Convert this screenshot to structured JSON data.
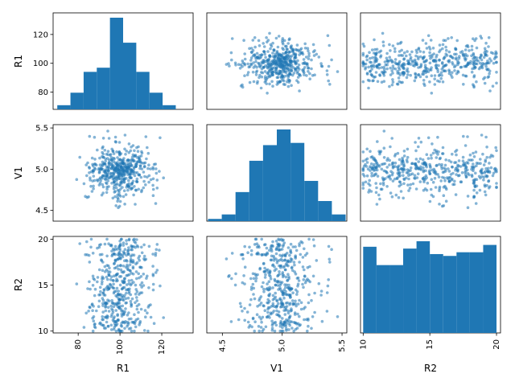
{
  "chart_data": {
    "type": "scatter",
    "variables": [
      "R1",
      "V1",
      "R2"
    ],
    "axis_labels": {
      "x": [
        "R1",
        "V1",
        "R2"
      ],
      "y": [
        "R1",
        "V1",
        "R2"
      ]
    },
    "ranges": {
      "R1": [
        68,
        135
      ],
      "V1": [
        4.37,
        5.54
      ],
      "R2": [
        9.8,
        20.3
      ]
    },
    "ticks": {
      "R1": {
        "x": [
          80,
          100,
          120
        ],
        "y": [
          80,
          100,
          120
        ]
      },
      "V1": {
        "x": [
          4.5,
          5.0,
          5.5
        ],
        "y": [
          4.5,
          5.0,
          5.5
        ]
      },
      "R2": {
        "x": [
          10,
          15,
          20
        ],
        "y": [
          10,
          15,
          20
        ]
      }
    },
    "tick_labels": {
      "R1": {
        "x": [
          "80",
          "100",
          "120"
        ],
        "y": [
          "80",
          "100",
          "120"
        ]
      },
      "V1": {
        "x": [
          "4.5",
          "5.0",
          "5.5"
        ],
        "y": [
          "4.5",
          "5.0",
          "5.5"
        ]
      },
      "R2": {
        "x": [
          "10",
          "15",
          "20"
        ],
        "y": [
          "10",
          "15",
          "20"
        ]
      }
    },
    "diagonal_histograms": {
      "R1": {
        "bin_edges": [
          70,
          76.3,
          82.6,
          88.9,
          95.2,
          101.5,
          107.8,
          114.1,
          120.4,
          126.7,
          133
        ],
        "counts": [
          1,
          4,
          9,
          10,
          22,
          16,
          9,
          4,
          1,
          0
        ]
      },
      "V1": {
        "bin_edges": [
          4.38,
          4.495,
          4.61,
          4.725,
          4.84,
          4.955,
          5.07,
          5.185,
          5.3,
          5.415,
          5.53
        ],
        "counts": [
          1,
          3,
          13,
          27,
          34,
          41,
          35,
          18,
          9,
          3
        ]
      },
      "R2": {
        "bin_edges": [
          10,
          11,
          12,
          13,
          14,
          15,
          16,
          17,
          18,
          19,
          20
        ],
        "counts": [
          47,
          37,
          37,
          46,
          50,
          43,
          42,
          44,
          44,
          48
        ]
      }
    },
    "sample_points": {
      "R1": [
        95,
        104,
        98,
        110,
        89,
        101,
        107,
        93,
        99,
        103,
        97,
        114,
        86,
        100,
        106,
        92,
        102,
        96,
        108,
        91,
        105,
        99,
        111,
        94,
        100,
        88,
        104,
        98,
        116,
        97,
        102,
        90,
        106,
        101,
        95,
        109,
        99,
        93,
        103,
        100,
        84,
        107,
        98,
        112,
        96,
        101,
        104,
        92,
        99,
        105,
        97,
        103,
        90,
        100,
        118,
        95,
        102,
        108,
        98,
        94,
        106,
        101,
        87,
        99,
        103,
        96,
        110,
        100,
        93,
        105,
        98,
        102,
        91,
        107,
        99,
        104,
        97,
        113,
        95,
        100
      ],
      "V1": [
        4.95,
        5.08,
        4.82,
        5.12,
        4.9,
        5.03,
        4.76,
        5.2,
        5.0,
        4.88,
        5.15,
        4.98,
        4.7,
        5.06,
        4.93,
        5.28,
        4.85,
        5.01,
        5.1,
        4.79,
        5.04,
        4.96,
        5.22,
        4.87,
        5.0,
        4.64,
        5.13,
        4.92,
        5.07,
        4.99,
        4.83,
        5.18,
        4.94,
        5.02,
        4.75,
        5.09,
        4.97,
        5.34,
        4.89,
        5.05,
        4.81,
        5.0,
        5.16,
        4.91,
        4.68,
        5.11,
        4.98,
        5.03,
        4.86,
        5.25,
        4.95,
        5.07,
        4.78,
        5.01,
        4.93,
        5.14,
        4.9,
        5.04,
        4.58,
        5.0,
        5.19,
        4.88,
        4.97,
        5.08,
        4.84,
        5.02,
        5.4,
        4.94,
        5.06,
        4.8,
        4.99,
        5.12,
        4.9,
        5.03,
        4.73,
        5.1,
        4.96,
        5.05,
        4.87,
        5.0
      ],
      "R2": [
        12.4,
        18.7,
        10.3,
        15.6,
        19.8,
        11.2,
        14.1,
        17.3,
        13.5,
        16.9,
        10.8,
        19.1,
        12.9,
        15.0,
        18.2,
        11.7,
        14.8,
        16.4,
        10.5,
        13.9,
        17.8,
        19.5,
        12.1,
        15.3,
        11.4,
        18.9,
        14.4,
        16.1,
        10.1,
        13.2,
        19.9,
        12.6,
        17.0,
        15.8,
        11.0,
        14.6,
        18.4,
        13.7,
        16.6,
        10.7,
        19.3,
        12.2,
        15.1,
        17.5,
        11.9,
        14.2,
        18.0,
        13.4,
        16.8,
        10.4,
        19.6,
        12.8,
        15.5,
        17.2,
        11.5,
        14.9,
        18.6,
        13.1,
        16.3,
        10.9,
        19.0,
        12.5,
        15.9,
        17.7,
        11.1,
        14.3,
        18.3,
        13.8,
        16.0,
        10.2,
        19.4,
        12.7,
        15.2,
        17.9,
        11.6,
        14.7,
        18.8,
        13.3,
        16.5,
        10.6
      ]
    }
  }
}
